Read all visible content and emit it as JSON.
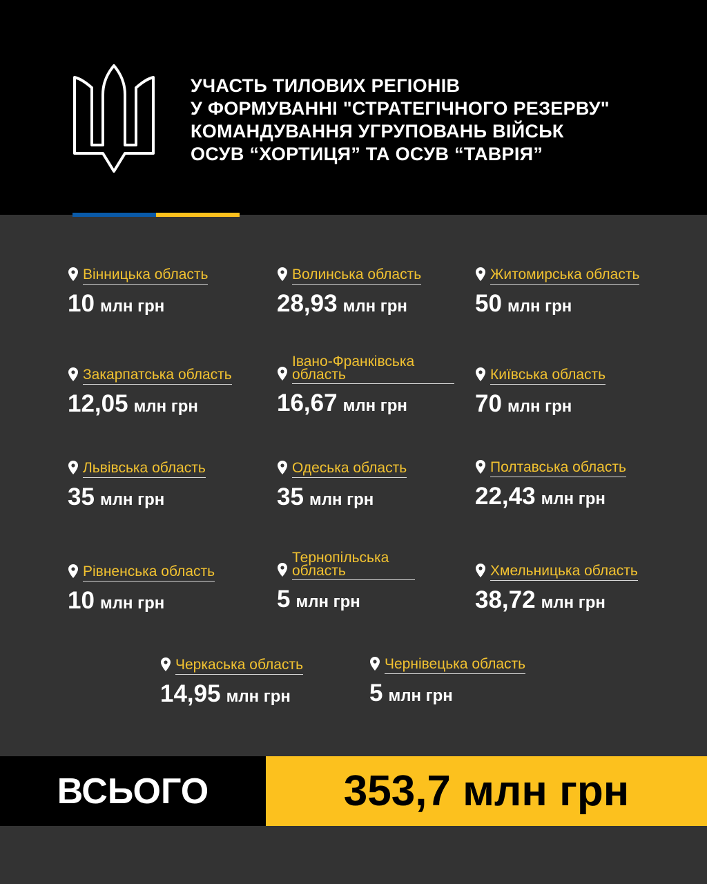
{
  "header": {
    "title_lines": [
      "УЧАСТЬ ТИЛОВИХ РЕГІОНІВ",
      "У ФОРМУВАННІ \"СТРАТЕГІЧНОГО РЕЗЕРВУ\"",
      "КОМАНДУВАННЯ УГРУПОВАНЬ ВІЙСЬК",
      "ОСУВ “ХОРТИЦЯ” ТА ОСУВ “ТАВРІЯ”"
    ],
    "logo": "trident-icon"
  },
  "colors": {
    "accent_yellow": "#fcc11e",
    "flag_blue": "#0a5aa8",
    "label_yellow": "#f2c230",
    "background": "#333333"
  },
  "regions": [
    {
      "name": "Вінницька область",
      "amount": "10",
      "unit": "млн грн"
    },
    {
      "name": "Волинська область",
      "amount": "28,93",
      "unit": "млн грн"
    },
    {
      "name": "Житомирська область",
      "amount": "50",
      "unit": "млн грн"
    },
    {
      "name": "Закарпатська область",
      "amount": "12,05",
      "unit": "млн грн"
    },
    {
      "name": "Івано-Франківська область",
      "amount": "16,67",
      "unit": "млн грн"
    },
    {
      "name": "Київська область",
      "amount": "70",
      "unit": "млн грн"
    },
    {
      "name": "Львівська область",
      "amount": "35",
      "unit": "млн грн"
    },
    {
      "name": "Одеська область",
      "amount": "35",
      "unit": "млн грн"
    },
    {
      "name": "Полтавська область",
      "amount": "22,43",
      "unit": "млн грн"
    },
    {
      "name": "Рівненська область",
      "amount": "10",
      "unit": "млн грн"
    },
    {
      "name": "Тернопільська область",
      "amount": "5",
      "unit": "млн грн"
    },
    {
      "name": "Хмельницька область",
      "amount": "38,72",
      "unit": "млн грн"
    },
    {
      "name": "Черкаська область",
      "amount": "14,95",
      "unit": "млн грн"
    },
    {
      "name": "Чернівецька область",
      "amount": "5",
      "unit": "млн грн"
    }
  ],
  "total": {
    "label": "ВСЬОГО",
    "value": "353,7 млн грн"
  }
}
